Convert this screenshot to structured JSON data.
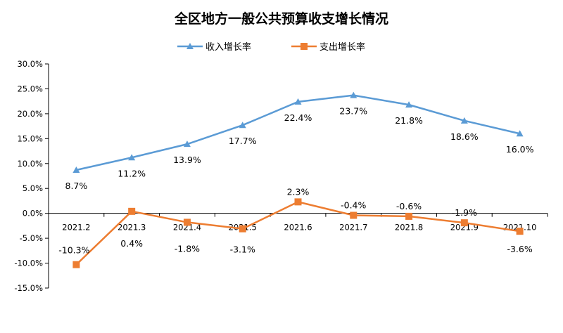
{
  "chart_data": {
    "type": "line",
    "title": "全区地方一般公共预算收支增长情况",
    "categories": [
      "2021.2",
      "2021.3",
      "2021.4",
      "2021.5",
      "2021.6",
      "2021.7",
      "2021.8",
      "2021.9",
      "2021.10"
    ],
    "series": [
      {
        "name": "收入增长率",
        "color": "#5b9bd5",
        "marker": "triangle",
        "values": [
          8.7,
          11.2,
          13.9,
          17.7,
          22.4,
          23.7,
          21.8,
          18.6,
          16.0
        ],
        "labels": [
          "8.7%",
          "11.2%",
          "13.9%",
          "17.7%",
          "22.4%",
          "23.7%",
          "21.8%",
          "18.6%",
          "16.0%"
        ]
      },
      {
        "name": "支出增长率",
        "color": "#ed7d31",
        "marker": "square",
        "values": [
          -10.3,
          0.4,
          -1.8,
          -3.1,
          2.3,
          -0.4,
          -0.6,
          -1.9,
          -3.6
        ],
        "labels": [
          "-10.3%",
          "0.4%",
          "-1.8%",
          "-3.1%",
          "2.3%",
          "-0.4%",
          "-0.6%",
          "-1.9%",
          "-3.6%"
        ]
      }
    ],
    "ylim": [
      -15,
      30
    ],
    "ytick_values": [
      30,
      25,
      20,
      15,
      10,
      5,
      0,
      -5,
      -10,
      -15
    ],
    "yticks": [
      "30.0%",
      "25.0%",
      "20.0%",
      "15.0%",
      "10.0%",
      "5.0%",
      "0.0%",
      "-5.0%",
      "-10.0%",
      "-15.0%"
    ],
    "legend_position": "top-center",
    "grid": false
  }
}
